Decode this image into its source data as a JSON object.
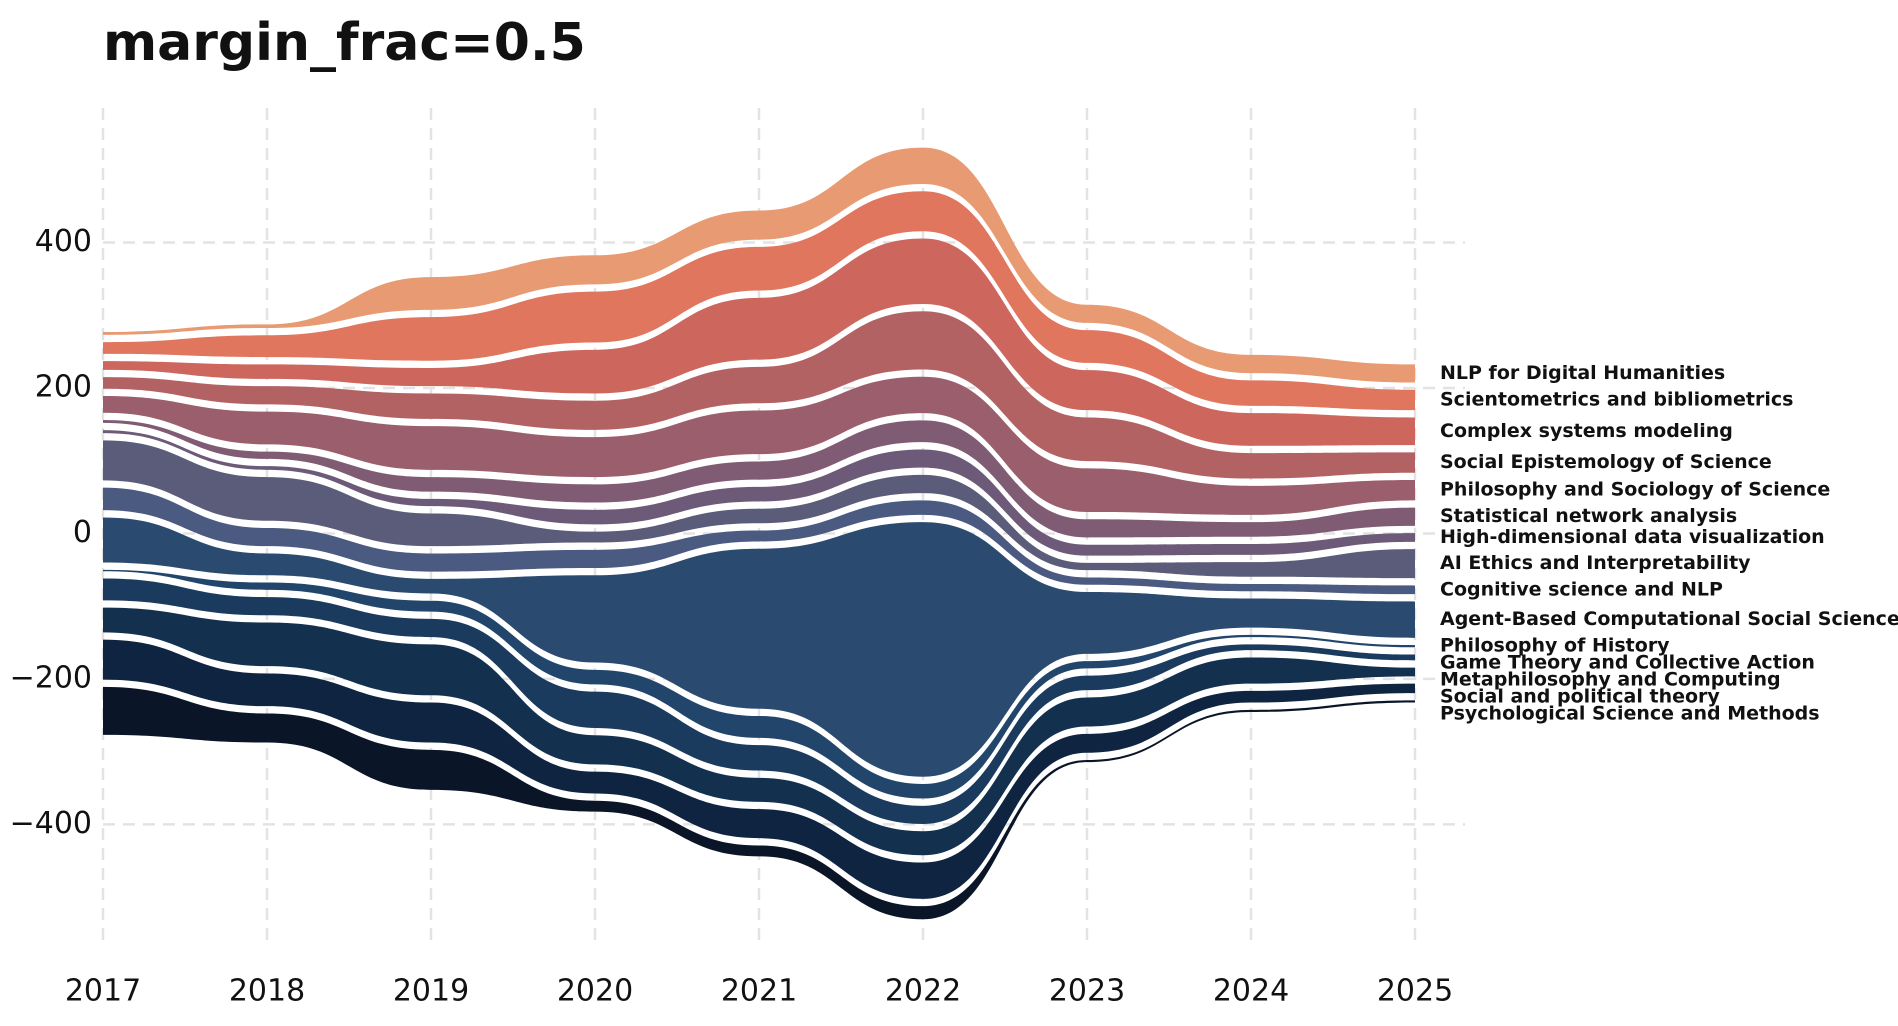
{
  "chart_data": {
    "type": "streamgraph",
    "title": "margin_frac=0.5",
    "x": [
      2017,
      2018,
      2019,
      2020,
      2021,
      2022,
      2023,
      2024,
      2025
    ],
    "xlim": [
      2017,
      2025
    ],
    "xticks": [
      2017,
      2018,
      2019,
      2020,
      2021,
      2022,
      2023,
      2024,
      2025
    ],
    "ylim": [
      -570,
      585
    ],
    "yticks": [
      {
        "value": -400,
        "label": "−400"
      },
      {
        "value": -200,
        "label": "−200"
      },
      0,
      200,
      400
    ],
    "grid": true,
    "series": [
      {
        "name": "Psychological Science and Methods",
        "color": "#0a1628",
        "values": [
          66,
          40,
          55,
          15,
          15,
          18,
          3,
          3,
          3
        ]
      },
      {
        "name": "Social and political theory",
        "color": "#0f2440",
        "values": [
          55,
          45,
          55,
          30,
          40,
          50,
          26,
          16,
          13
        ]
      },
      {
        "name": "Metaphilosophy and Computing",
        "color": "#13304f",
        "values": [
          34,
          60,
          70,
          40,
          33,
          33,
          40,
          36,
          12
        ]
      },
      {
        "name": "Game Theory and Collective Action",
        "color": "#1a3a5e",
        "values": [
          30,
          25,
          25,
          50,
          35,
          25,
          20,
          8,
          8
        ]
      },
      {
        "name": "Philosophy of History",
        "color": "#22456b",
        "values": [
          2,
          10,
          15,
          20,
          30,
          20,
          10,
          3,
          3
        ]
      },
      {
        "name": "Agent-Based Computational Social Science",
        "color": "#2b4a70",
        "values": [
          62,
          30,
          20,
          120,
          220,
          350,
          85,
          40,
          50
        ]
      },
      {
        "name": "Cognitive science and NLP",
        "color": "#4a5a80",
        "values": [
          31,
          25,
          25,
          25,
          15,
          20,
          10,
          10,
          12
        ]
      },
      {
        "name": "AI Ethics and Interpretability",
        "color": "#5b5b7a",
        "values": [
          55,
          60,
          45,
          15,
          20,
          25,
          10,
          20,
          40
        ]
      },
      {
        "name": "High-dimensional data visualization",
        "color": "#6c5a78",
        "values": [
          4,
          5,
          10,
          20,
          20,
          25,
          15,
          15,
          12
        ]
      },
      {
        "name": "Statistical network analysis",
        "color": "#7f5c74",
        "values": [
          4,
          10,
          20,
          25,
          25,
          30,
          25,
          20,
          25
        ]
      },
      {
        "name": "Philosophy and Sociology of Science",
        "color": "#9a5e6c",
        "values": [
          23,
          45,
          60,
          55,
          60,
          50,
          60,
          40,
          28
        ]
      },
      {
        "name": "Social Epistemology of Science",
        "color": "#b36264",
        "values": [
          16,
          25,
          35,
          40,
          50,
          80,
          60,
          35,
          28
        ]
      },
      {
        "name": "Complex systems modeling",
        "color": "#cd665c",
        "values": [
          12,
          20,
          25,
          60,
          85,
          90,
          55,
          45,
          38
        ]
      },
      {
        "name": "Scientometrics and bibliometrics",
        "color": "#e0765e",
        "values": [
          16,
          30,
          60,
          70,
          60,
          55,
          45,
          35,
          28
        ]
      },
      {
        "name": "NLP for Digital Humanities",
        "color": "#e89a72",
        "values": [
          4,
          5,
          45,
          40,
          40,
          50,
          25,
          25,
          25
        ]
      }
    ]
  }
}
